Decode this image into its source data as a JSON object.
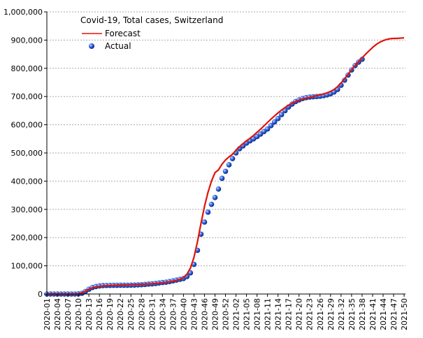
{
  "chart_data": {
    "type": "line",
    "title": "Covid-19, Total cases, Switzerland",
    "categories": [
      "2020-01",
      null,
      null,
      "2020-04",
      null,
      null,
      "2020-07",
      null,
      null,
      "2020-10",
      null,
      null,
      "2020-13",
      null,
      null,
      "2020-16",
      null,
      null,
      "2020-19",
      null,
      null,
      "2020-22",
      null,
      null,
      "2020-25",
      null,
      null,
      "2020-28",
      null,
      null,
      "2020-31",
      null,
      null,
      "2020-34",
      null,
      null,
      "2020-37",
      null,
      null,
      "2020-40",
      null,
      null,
      "2020-43",
      null,
      null,
      "2020-46",
      null,
      null,
      "2020-49",
      null,
      null,
      "2020-52",
      null,
      null,
      "2021-02",
      null,
      null,
      "2021-05",
      null,
      null,
      "2021-08",
      null,
      null,
      "2021-11",
      null,
      null,
      "2021-14",
      null,
      null,
      "2021-17",
      null,
      null,
      "2021-20",
      null,
      null,
      "2021-23",
      null,
      null,
      "2021-26",
      null,
      null,
      "2021-29",
      null,
      null,
      "2021-32",
      null,
      null,
      "2021-35",
      null,
      null,
      "2021-38",
      null,
      null,
      "2021-41",
      null,
      null,
      "2021-44",
      null,
      null,
      "2021-47",
      null,
      null,
      "2021-50"
    ],
    "series": [
      {
        "name": "Forecast",
        "color": "#e0140a",
        "style": "line",
        "values": [
          0,
          0,
          0,
          0,
          0,
          0,
          0,
          0,
          0,
          1000,
          4000,
          10000,
          17000,
          22000,
          25000,
          27000,
          28500,
          29500,
          30200,
          30800,
          31300,
          31800,
          32200,
          32600,
          33000,
          33400,
          33800,
          34300,
          34900,
          35600,
          36400,
          37400,
          38600,
          40000,
          41600,
          43500,
          45800,
          48500,
          52000,
          58000,
          70000,
          92000,
          130000,
          185000,
          250000,
          310000,
          360000,
          400000,
          430000,
          440000,
          460000,
          475000,
          486000,
          495000,
          510000,
          522000,
          533000,
          543000,
          552000,
          562000,
          573000,
          584000,
          596000,
          608000,
          620000,
          631000,
          642000,
          652000,
          661000,
          669000,
          676000,
          682000,
          687000,
          691000,
          694000,
          697000,
          700000,
          703000,
          706000,
          709000,
          713000,
          718000,
          725000,
          735000,
          748000,
          763000,
          779000,
          795000,
          810000,
          824000,
          837000,
          850000,
          862000,
          874000,
          884000,
          892000,
          898000,
          902000,
          905000,
          906000,
          906000,
          907000,
          908000
        ]
      },
      {
        "name": "Actual",
        "color": "#1f4fd0",
        "style": "markers",
        "values": [
          0,
          0,
          0,
          0,
          0,
          0,
          0,
          0,
          0,
          500,
          2500,
          9000,
          17000,
          23000,
          26500,
          28500,
          29800,
          30300,
          30600,
          30800,
          30900,
          31000,
          31100,
          31200,
          31400,
          31700,
          32300,
          33000,
          34000,
          35000,
          36000,
          37400,
          39000,
          40600,
          42000,
          44000,
          46700,
          49300,
          52000,
          55000,
          62000,
          75000,
          105000,
          155000,
          212000,
          255000,
          290000,
          318000,
          342000,
          372000,
          410000,
          435000,
          458000,
          480000,
          500000,
          515000,
          525000,
          535000,
          543000,
          550000,
          558000,
          567000,
          576000,
          585000,
          597000,
          610000,
          622000,
          636000,
          650000,
          663000,
          673000,
          682000,
          688000,
          693000,
          696000,
          698000,
          699000,
          700000,
          701000,
          703000,
          706000,
          710000,
          716000,
          725000,
          740000,
          758000,
          776000,
          794000,
          810000,
          822000,
          832000,
          null,
          null,
          null,
          null,
          null,
          null,
          null,
          null,
          null,
          null,
          null,
          null
        ]
      }
    ],
    "ylim": [
      0,
      1000000
    ],
    "yticks": [
      0,
      {
        "value": 100000,
        "label": "100,000"
      },
      {
        "value": 200000,
        "label": "200,000"
      },
      {
        "value": 300000,
        "label": "300,000"
      },
      {
        "value": 400000,
        "label": "400,000"
      },
      {
        "value": 500000,
        "label": "500,000"
      },
      {
        "value": 600000,
        "label": "600,000"
      },
      {
        "value": 700000,
        "label": "700,000"
      },
      {
        "value": 800000,
        "label": "800,000"
      },
      {
        "value": 900000,
        "label": "900,000"
      },
      {
        "value": 1000000,
        "label": "1,000,000"
      }
    ],
    "grid": true,
    "legend": "upper left"
  }
}
